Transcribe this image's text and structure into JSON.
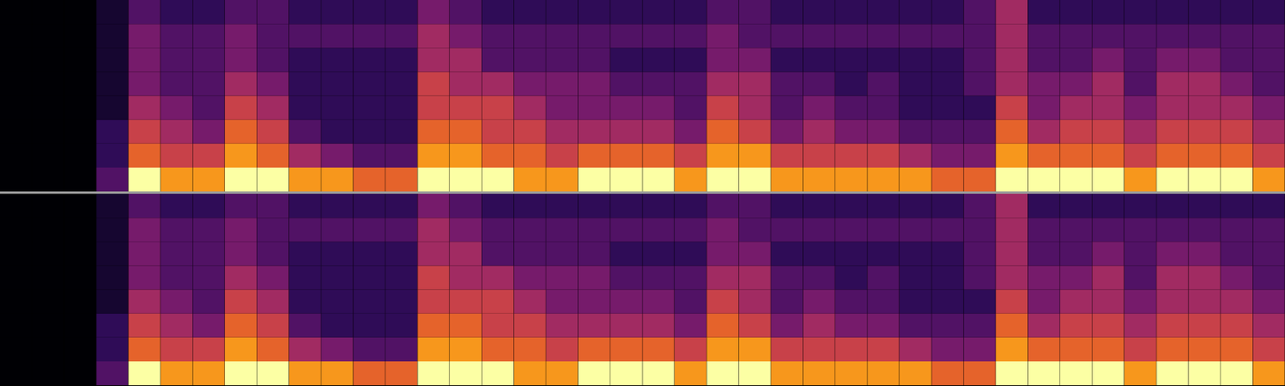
{
  "chart_data": [
    {
      "type": "heatmap",
      "tick_labels": false,
      "zlim": [
        0,
        9
      ],
      "cells": [
        [
          0,
          0,
          0,
          0,
          0,
          0,
          0,
          0
        ],
        [
          0,
          0,
          0,
          0,
          0,
          0,
          0,
          0
        ],
        [
          0,
          0,
          0,
          0,
          0,
          0,
          0,
          0
        ],
        [
          3,
          2,
          2,
          1,
          1,
          1,
          1,
          1
        ],
        [
          9,
          7,
          6,
          5,
          4,
          4,
          4,
          3
        ],
        [
          8,
          6,
          5,
          4,
          3,
          3,
          3,
          2
        ],
        [
          8,
          6,
          4,
          3,
          3,
          3,
          3,
          2
        ],
        [
          9,
          8,
          7,
          6,
          5,
          4,
          4,
          3
        ],
        [
          9,
          7,
          6,
          5,
          4,
          3,
          3,
          3
        ],
        [
          8,
          5,
          3,
          2,
          2,
          2,
          3,
          2
        ],
        [
          8,
          4,
          2,
          2,
          2,
          2,
          3,
          2
        ],
        [
          7,
          3,
          2,
          2,
          2,
          2,
          3,
          2
        ],
        [
          7,
          3,
          2,
          2,
          2,
          2,
          3,
          2
        ],
        [
          9,
          8,
          7,
          6,
          6,
          5,
          5,
          4
        ],
        [
          9,
          8,
          7,
          6,
          5,
          5,
          4,
          3
        ],
        [
          9,
          7,
          6,
          6,
          5,
          3,
          3,
          2
        ],
        [
          8,
          7,
          6,
          5,
          4,
          3,
          3,
          2
        ],
        [
          8,
          6,
          5,
          4,
          4,
          3,
          3,
          2
        ],
        [
          9,
          7,
          5,
          4,
          4,
          3,
          3,
          2
        ],
        [
          9,
          7,
          5,
          4,
          3,
          2,
          3,
          2
        ],
        [
          9,
          7,
          5,
          4,
          3,
          2,
          3,
          2
        ],
        [
          8,
          6,
          4,
          3,
          3,
          2,
          3,
          2
        ],
        [
          9,
          8,
          7,
          6,
          5,
          4,
          4,
          3
        ],
        [
          9,
          8,
          6,
          5,
          5,
          4,
          3,
          3
        ],
        [
          8,
          6,
          4,
          3,
          3,
          2,
          3,
          2
        ],
        [
          8,
          6,
          5,
          4,
          3,
          2,
          3,
          2
        ],
        [
          8,
          6,
          4,
          3,
          2,
          2,
          3,
          2
        ],
        [
          8,
          6,
          4,
          3,
          3,
          2,
          3,
          2
        ],
        [
          8,
          5,
          3,
          2,
          2,
          2,
          3,
          2
        ],
        [
          7,
          4,
          3,
          2,
          2,
          2,
          3,
          2
        ],
        [
          7,
          4,
          3,
          2,
          3,
          3,
          3,
          3
        ],
        [
          9,
          8,
          7,
          6,
          5,
          5,
          5,
          5
        ],
        [
          9,
          7,
          5,
          4,
          4,
          3,
          3,
          2
        ],
        [
          9,
          7,
          6,
          5,
          4,
          3,
          3,
          2
        ],
        [
          9,
          7,
          6,
          5,
          5,
          4,
          3,
          2
        ],
        [
          8,
          6,
          5,
          4,
          3,
          3,
          3,
          2
        ],
        [
          9,
          7,
          6,
          5,
          5,
          4,
          3,
          2
        ],
        [
          9,
          7,
          6,
          5,
          5,
          4,
          3,
          2
        ],
        [
          9,
          7,
          6,
          5,
          4,
          3,
          3,
          2
        ],
        [
          8,
          6,
          5,
          4,
          3,
          3,
          3,
          2
        ]
      ]
    },
    {
      "type": "heatmap",
      "tick_labels": false,
      "zlim": [
        0,
        9
      ],
      "cells": [
        [
          0,
          0,
          0,
          0,
          0,
          0,
          0,
          0
        ],
        [
          0,
          0,
          0,
          0,
          0,
          0,
          0,
          0
        ],
        [
          0,
          0,
          0,
          0,
          0,
          0,
          0,
          0
        ],
        [
          3,
          2,
          2,
          1,
          1,
          1,
          1,
          1
        ],
        [
          9,
          7,
          6,
          5,
          4,
          4,
          4,
          3
        ],
        [
          8,
          6,
          5,
          4,
          3,
          3,
          3,
          2
        ],
        [
          8,
          6,
          4,
          3,
          3,
          3,
          3,
          2
        ],
        [
          9,
          8,
          7,
          6,
          5,
          4,
          4,
          3
        ],
        [
          9,
          7,
          6,
          5,
          4,
          3,
          3,
          3
        ],
        [
          8,
          5,
          3,
          2,
          2,
          2,
          3,
          2
        ],
        [
          8,
          4,
          2,
          2,
          2,
          2,
          3,
          2
        ],
        [
          7,
          3,
          2,
          2,
          2,
          2,
          3,
          2
        ],
        [
          7,
          3,
          2,
          2,
          2,
          2,
          3,
          2
        ],
        [
          9,
          8,
          7,
          6,
          6,
          5,
          5,
          4
        ],
        [
          9,
          8,
          7,
          6,
          5,
          5,
          4,
          3
        ],
        [
          9,
          7,
          6,
          6,
          5,
          3,
          3,
          2
        ],
        [
          8,
          7,
          6,
          5,
          4,
          3,
          3,
          2
        ],
        [
          8,
          6,
          5,
          4,
          4,
          3,
          3,
          2
        ],
        [
          9,
          7,
          5,
          4,
          4,
          3,
          3,
          2
        ],
        [
          9,
          7,
          5,
          4,
          3,
          2,
          3,
          2
        ],
        [
          9,
          7,
          5,
          4,
          3,
          2,
          3,
          2
        ],
        [
          8,
          6,
          4,
          3,
          3,
          2,
          3,
          2
        ],
        [
          9,
          8,
          7,
          6,
          5,
          4,
          4,
          3
        ],
        [
          9,
          8,
          6,
          5,
          5,
          4,
          3,
          3
        ],
        [
          8,
          6,
          4,
          3,
          3,
          2,
          3,
          2
        ],
        [
          8,
          6,
          5,
          4,
          3,
          2,
          3,
          2
        ],
        [
          8,
          6,
          4,
          3,
          2,
          2,
          3,
          2
        ],
        [
          8,
          6,
          4,
          3,
          3,
          2,
          3,
          2
        ],
        [
          8,
          5,
          3,
          2,
          2,
          2,
          3,
          2
        ],
        [
          7,
          4,
          3,
          2,
          2,
          2,
          3,
          2
        ],
        [
          7,
          4,
          3,
          2,
          3,
          3,
          3,
          3
        ],
        [
          9,
          8,
          7,
          6,
          5,
          5,
          5,
          5
        ],
        [
          9,
          7,
          5,
          4,
          4,
          3,
          3,
          2
        ],
        [
          9,
          7,
          6,
          5,
          4,
          3,
          3,
          2
        ],
        [
          9,
          7,
          6,
          5,
          5,
          4,
          3,
          2
        ],
        [
          8,
          6,
          5,
          4,
          3,
          3,
          3,
          2
        ],
        [
          9,
          7,
          6,
          5,
          5,
          4,
          3,
          2
        ],
        [
          9,
          7,
          6,
          5,
          5,
          4,
          3,
          2
        ],
        [
          9,
          7,
          6,
          5,
          4,
          3,
          3,
          2
        ],
        [
          8,
          6,
          5,
          4,
          3,
          3,
          3,
          2
        ]
      ]
    }
  ]
}
